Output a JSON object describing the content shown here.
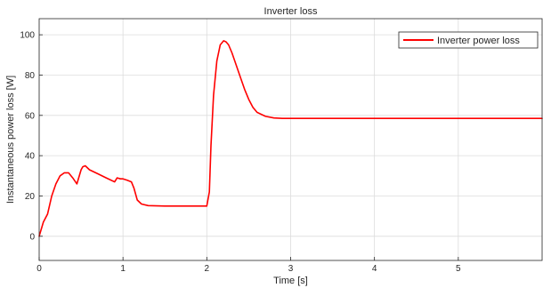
{
  "chart_data": {
    "type": "line",
    "title": "Inverter loss",
    "xlabel": "Time [s]",
    "ylabel": "Instantaneous power loss [W]",
    "xlim": [
      0,
      6
    ],
    "ylim": [
      -12,
      108
    ],
    "xticks": [
      0,
      1,
      2,
      3,
      4,
      5
    ],
    "yticks": [
      0,
      20,
      40,
      60,
      80,
      100
    ],
    "grid": true,
    "legend_position": "top-right",
    "series": [
      {
        "name": "Inverter power loss",
        "color": "#ff0000",
        "x": [
          0,
          0.05,
          0.1,
          0.15,
          0.2,
          0.25,
          0.3,
          0.35,
          0.4,
          0.45,
          0.5,
          0.52,
          0.55,
          0.6,
          0.7,
          0.8,
          0.9,
          0.93,
          0.97,
          1.0,
          1.05,
          1.1,
          1.13,
          1.17,
          1.22,
          1.3,
          1.5,
          1.7,
          1.9,
          2.0,
          2.03,
          2.05,
          2.08,
          2.12,
          2.16,
          2.2,
          2.23,
          2.26,
          2.3,
          2.35,
          2.4,
          2.45,
          2.5,
          2.55,
          2.6,
          2.7,
          2.8,
          2.9,
          3.0,
          3.5,
          4.0,
          4.5,
          5.0,
          5.5,
          6.0
        ],
        "y": [
          0,
          7,
          11,
          20,
          26,
          30,
          31.5,
          31.5,
          29,
          26,
          33,
          34.5,
          35,
          33,
          31,
          29,
          27,
          29,
          28.5,
          28.5,
          27.8,
          27,
          24,
          18,
          16,
          15.2,
          15,
          15,
          15,
          15,
          22,
          45,
          70,
          87,
          95,
          97,
          96.5,
          95,
          91,
          85,
          79,
          73,
          68,
          64,
          61.5,
          59.5,
          58.7,
          58.5,
          58.5,
          58.5,
          58.5,
          58.5,
          58.5,
          58.5,
          58.5
        ]
      }
    ]
  }
}
